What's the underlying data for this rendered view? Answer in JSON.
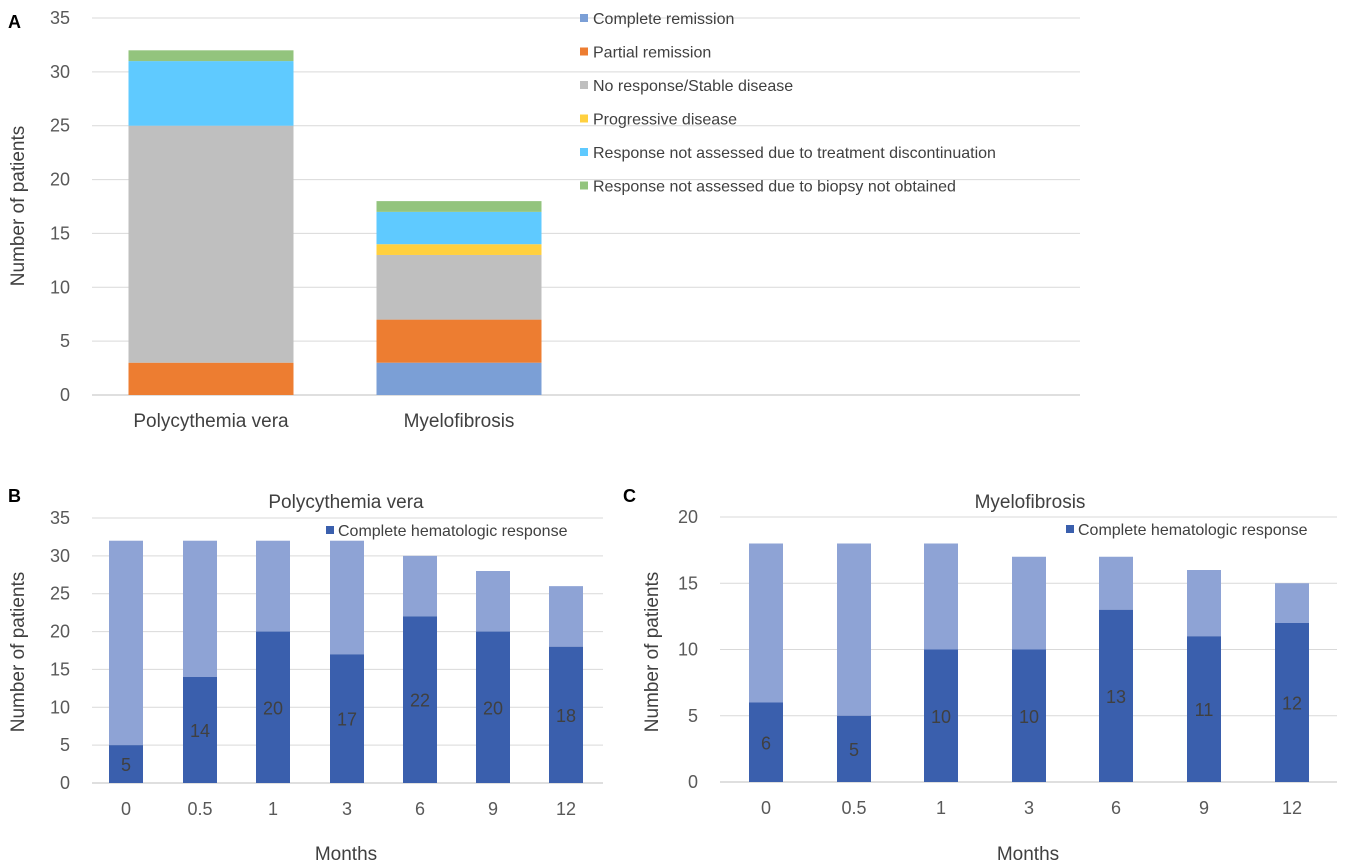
{
  "chart_data": [
    {
      "panel": "A",
      "type": "bar",
      "stacked": true,
      "title": "",
      "xlabel": "",
      "ylabel": "Number of patients",
      "ylim": [
        0,
        35
      ],
      "yticks": [
        "0",
        "5",
        "10",
        "15",
        "20",
        "25",
        "30",
        "35"
      ],
      "grid": true,
      "legend_position": "top-right",
      "categories": [
        "Polycythemia vera",
        "Myelofibrosis"
      ],
      "series": [
        {
          "name": "Complete remission",
          "color": "#7b9fd6",
          "values": [
            0,
            3
          ]
        },
        {
          "name": "Partial remission",
          "color": "#ed7d31",
          "values": [
            3,
            4
          ]
        },
        {
          "name": "No response/Stable disease",
          "color": "#bfbfbf",
          "values": [
            22,
            6
          ]
        },
        {
          "name": "Progressive disease",
          "color": "#ffd03f",
          "values": [
            0,
            1
          ]
        },
        {
          "name": "Response not assessed due to treatment discontinuation",
          "color": "#5fcaff",
          "values": [
            6,
            3
          ]
        },
        {
          "name": "Response not assessed due to biopsy not obtained",
          "color": "#93c47d",
          "values": [
            1,
            1
          ]
        }
      ]
    },
    {
      "panel": "B",
      "type": "bar",
      "stacked": true,
      "title": "Polycythemia vera",
      "xlabel": "Months",
      "ylabel": "Number of patients",
      "ylim": [
        0,
        35
      ],
      "yticks": [
        "0",
        "5",
        "10",
        "15",
        "20",
        "25",
        "30",
        "35"
      ],
      "grid": true,
      "legend_position": "top-right",
      "legend_entry": "Complete hematologic response",
      "categories": [
        "0",
        "0.5",
        "1",
        "3",
        "6",
        "9",
        "12"
      ],
      "response_values": [
        5,
        14,
        20,
        17,
        22,
        20,
        18
      ],
      "total_values": [
        32,
        32,
        32,
        32,
        30,
        28,
        26
      ],
      "response_color": "#3a5fad",
      "total_color": "#8ea3d5"
    },
    {
      "panel": "C",
      "type": "bar",
      "stacked": true,
      "title": "Myelofibrosis",
      "xlabel": "Months",
      "ylabel": "Number of patients",
      "ylim": [
        0,
        20
      ],
      "yticks": [
        "0",
        "5",
        "10",
        "15",
        "20"
      ],
      "grid": true,
      "legend_position": "top-right",
      "legend_entry": "Complete hematologic response",
      "categories": [
        "0",
        "0.5",
        "1",
        "3",
        "6",
        "9",
        "12"
      ],
      "response_values": [
        6,
        5,
        10,
        10,
        13,
        11,
        12
      ],
      "total_values": [
        18,
        18,
        18,
        17,
        17,
        16,
        15
      ],
      "response_color": "#3a5fad",
      "total_color": "#8ea3d5"
    }
  ]
}
